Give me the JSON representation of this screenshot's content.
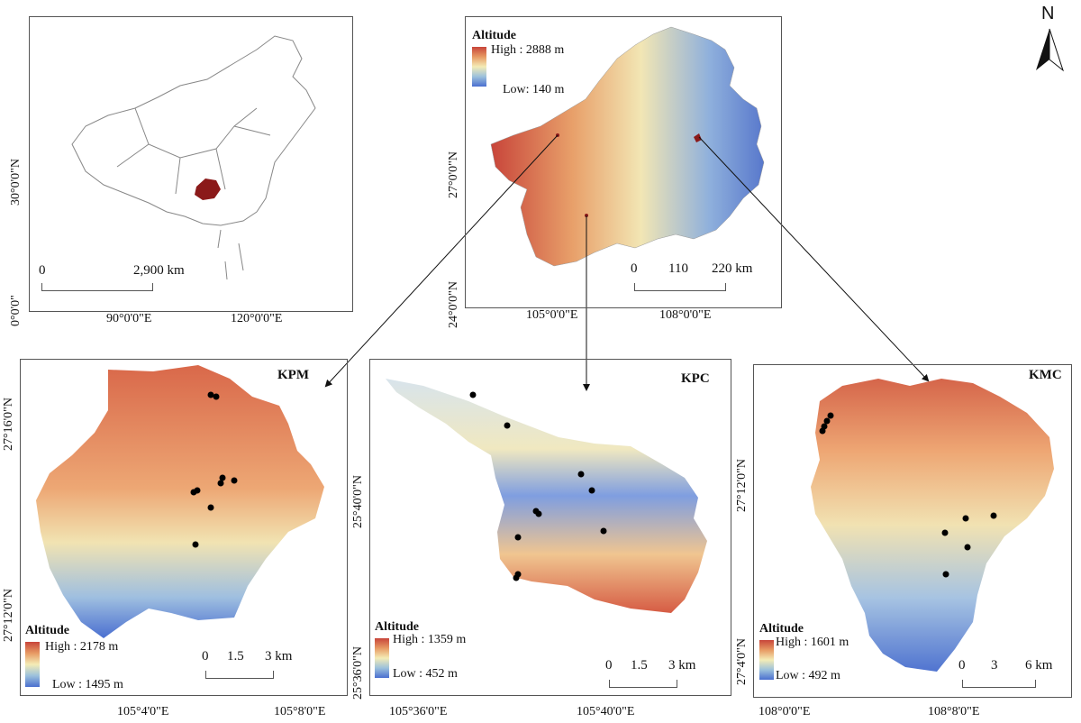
{
  "overview": {
    "lat_labels": [
      "30°0'0\"N",
      "0°0'0\""
    ],
    "lon_labels": [
      "90°0'0\"E",
      "120°0'0\"E"
    ],
    "scale": [
      "0",
      "2,900 km"
    ]
  },
  "guizhou": {
    "legend_title": "Altitude",
    "high": "High : 2888 m",
    "low": "Low: 140 m",
    "lat_labels": [
      "27°0'0\"N",
      "24°0'0\"N"
    ],
    "lon_labels": [
      "105°0'0\"E",
      "108°0'0\"E"
    ],
    "scale": [
      "0",
      "110",
      "220 km"
    ]
  },
  "north_arrow": {
    "label": "N"
  },
  "kpm": {
    "title": "KPM",
    "legend_title": "Altitude",
    "high": "High : 2178 m",
    "low": "Low : 1495 m",
    "lat_labels": [
      "27°16'0\"N",
      "27°12'0\"N"
    ],
    "lon_labels": [
      "105°4'0\"E",
      "105°8'0\"E"
    ],
    "scale": [
      "0",
      "1.5",
      "3 km"
    ]
  },
  "kpc": {
    "title": "KPC",
    "legend_title": "Altitude",
    "high": "High : 1359 m",
    "low": "Low : 452 m",
    "lat_labels": [
      "25°40'0\"N",
      "25°36'0\"N"
    ],
    "lon_labels": [
      "105°36'0\"E",
      "105°40'0\"E"
    ],
    "scale": [
      "0",
      "1.5",
      "3 km"
    ]
  },
  "kmc": {
    "title": "KMC",
    "legend_title": "Altitude",
    "high": "High : 1601 m",
    "low": "Low : 492 m",
    "lat_labels": [
      "27°12'0\"N",
      "27°4'0\"N"
    ],
    "lon_labels": [
      "108°0'0\"E",
      "108°8'0\"E"
    ],
    "scale": [
      "0",
      "3",
      "6 km"
    ]
  },
  "colors": {
    "high": "#c8453a",
    "mid": "#f4ecb6",
    "low": "#4a6fd0",
    "province": "#8b1a1a"
  }
}
